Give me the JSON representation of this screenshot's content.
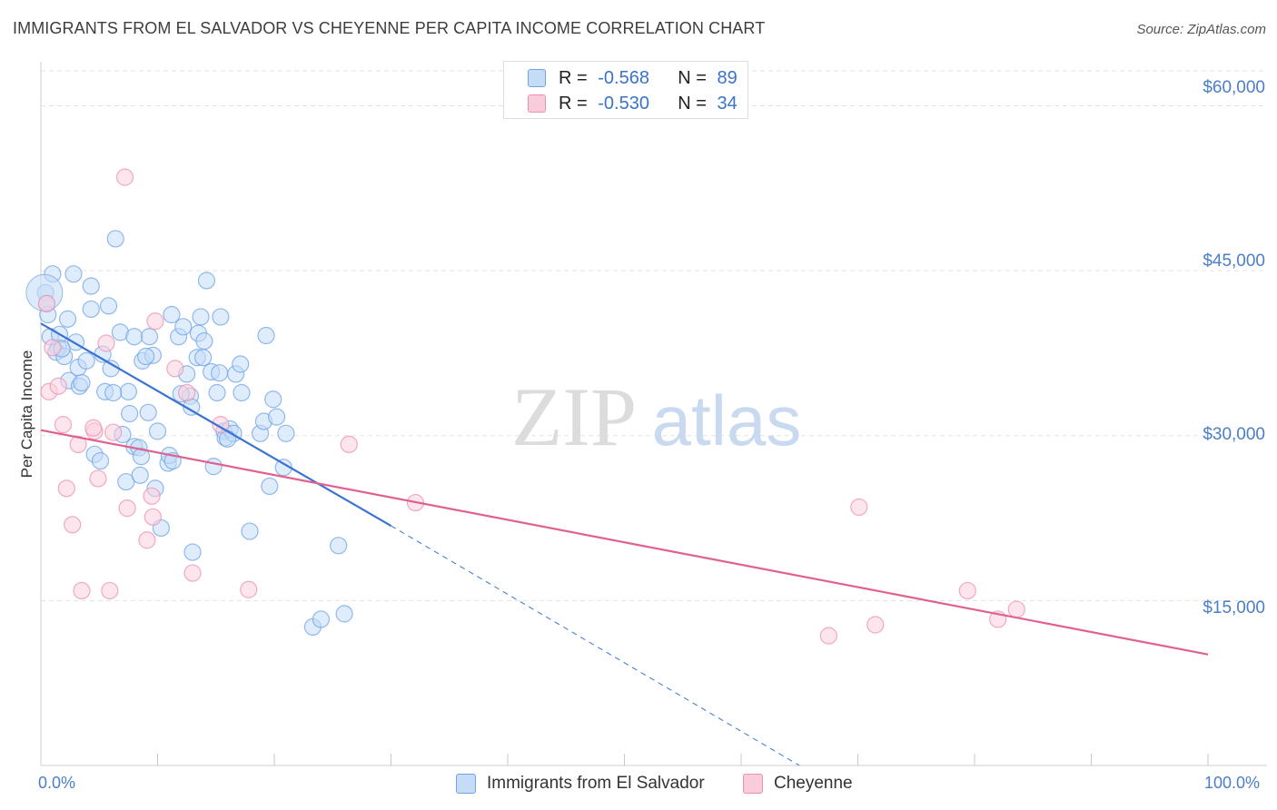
{
  "title": "IMMIGRANTS FROM EL SALVADOR VS CHEYENNE PER CAPITA INCOME CORRELATION CHART",
  "source": "Source: ZipAtlas.com",
  "watermark": {
    "zip": "ZIP",
    "atlas": "atlas"
  },
  "legend": {
    "r_label": "R = ",
    "n_label": "N = ",
    "rows": [
      {
        "r": "-0.568",
        "n": "89",
        "color": "#6fa3e6",
        "fill": "#c5dcf7"
      },
      {
        "r": "-0.530",
        "n": "34",
        "color": "#ee8fb0",
        "fill": "#f9ccdb"
      }
    ]
  },
  "colors": {
    "blue": "#3a73d1",
    "pink": "#e0608f",
    "blue_fill": "#c5dcf7",
    "pink_fill": "#f9d0de",
    "grid": "#e3e3e3",
    "axis_text": "#4a7ec9"
  },
  "chart_data": {
    "type": "scatter",
    "title": "IMMIGRANTS FROM EL SALVADOR VS CHEYENNE PER CAPITA INCOME CORRELATION CHART",
    "xlabel": "",
    "ylabel": "Per Capita Income",
    "xlim": [
      0,
      100
    ],
    "ylim": [
      0,
      64000
    ],
    "x_tick_labels": [
      "0.0%",
      "100.0%"
    ],
    "y_ticks": [
      15000,
      30000,
      45000,
      60000
    ],
    "y_tick_labels": [
      "$15,000",
      "$30,000",
      "$45,000",
      "$60,000"
    ],
    "series": [
      {
        "name": "Immigrants from El Salvador",
        "color": "#3a73d1",
        "points": [
          [
            0.4,
            43000
          ],
          [
            0.5,
            42000
          ],
          [
            0.6,
            41000
          ],
          [
            1.0,
            44700
          ],
          [
            0.8,
            39000
          ],
          [
            1.5,
            38000
          ],
          [
            1.3,
            37600
          ],
          [
            1.6,
            39200
          ],
          [
            2.3,
            40600
          ],
          [
            2.0,
            37200
          ],
          [
            2.4,
            35000
          ],
          [
            2.8,
            44700
          ],
          [
            3.0,
            38500
          ],
          [
            3.2,
            36200
          ],
          [
            3.3,
            34500
          ],
          [
            3.5,
            34800
          ],
          [
            4.3,
            43600
          ],
          [
            4.3,
            41500
          ],
          [
            4.6,
            28300
          ],
          [
            5.1,
            27700
          ],
          [
            5.3,
            37400
          ],
          [
            5.8,
            41800
          ],
          [
            6.0,
            36100
          ],
          [
            5.5,
            34000
          ],
          [
            6.4,
            47900
          ],
          [
            6.8,
            39400
          ],
          [
            7.0,
            30100
          ],
          [
            7.3,
            25800
          ],
          [
            7.5,
            34000
          ],
          [
            7.6,
            32000
          ],
          [
            8.0,
            29000
          ],
          [
            8.4,
            28900
          ],
          [
            8.5,
            26400
          ],
          [
            8.6,
            28100
          ],
          [
            8.0,
            39000
          ],
          [
            8.7,
            36800
          ],
          [
            9.2,
            32100
          ],
          [
            9.3,
            39000
          ],
          [
            9.6,
            37300
          ],
          [
            9.8,
            25200
          ],
          [
            10.3,
            21600
          ],
          [
            10.9,
            27500
          ],
          [
            11.2,
            41000
          ],
          [
            11.0,
            28200
          ],
          [
            11.3,
            27700
          ],
          [
            11.8,
            39000
          ],
          [
            12.2,
            39900
          ],
          [
            12.5,
            35600
          ],
          [
            12.8,
            33600
          ],
          [
            12.9,
            32600
          ],
          [
            13.0,
            19400
          ],
          [
            13.4,
            37100
          ],
          [
            13.5,
            39300
          ],
          [
            13.7,
            40800
          ],
          [
            13.9,
            37100
          ],
          [
            14.0,
            38600
          ],
          [
            14.2,
            44100
          ],
          [
            14.6,
            35800
          ],
          [
            14.8,
            27200
          ],
          [
            15.1,
            33900
          ],
          [
            15.3,
            35700
          ],
          [
            15.4,
            40800
          ],
          [
            15.7,
            30400
          ],
          [
            15.8,
            29800
          ],
          [
            16.2,
            30600
          ],
          [
            16.5,
            30200
          ],
          [
            16.7,
            35600
          ],
          [
            17.1,
            36500
          ],
          [
            17.2,
            33900
          ],
          [
            17.9,
            21300
          ],
          [
            18.8,
            30200
          ],
          [
            19.1,
            31300
          ],
          [
            19.3,
            39100
          ],
          [
            19.6,
            25400
          ],
          [
            19.9,
            33300
          ],
          [
            20.2,
            31700
          ],
          [
            20.8,
            27100
          ],
          [
            21.0,
            30200
          ],
          [
            23.3,
            12600
          ],
          [
            24.0,
            13300
          ],
          [
            25.5,
            20000
          ],
          [
            26.0,
            13800
          ],
          [
            1.8,
            37900
          ],
          [
            3.9,
            36800
          ],
          [
            6.2,
            33900
          ],
          [
            10.0,
            30400
          ],
          [
            12.0,
            33800
          ],
          [
            16.0,
            29700
          ],
          [
            9.0,
            37200
          ]
        ]
      },
      {
        "name": "Cheyenne",
        "color": "#e0608f",
        "points": [
          [
            0.5,
            42000
          ],
          [
            0.7,
            34000
          ],
          [
            1.0,
            38000
          ],
          [
            1.5,
            34500
          ],
          [
            1.9,
            31000
          ],
          [
            2.2,
            25200
          ],
          [
            2.7,
            21900
          ],
          [
            3.2,
            29200
          ],
          [
            3.5,
            15900
          ],
          [
            4.6,
            30400
          ],
          [
            4.9,
            26100
          ],
          [
            5.6,
            38400
          ],
          [
            5.9,
            15900
          ],
          [
            6.2,
            30300
          ],
          [
            7.2,
            53500
          ],
          [
            7.4,
            23400
          ],
          [
            9.1,
            20500
          ],
          [
            9.6,
            22600
          ],
          [
            9.8,
            40400
          ],
          [
            11.5,
            36100
          ],
          [
            12.5,
            33900
          ],
          [
            13.0,
            17500
          ],
          [
            15.4,
            31000
          ],
          [
            17.8,
            16000
          ],
          [
            26.4,
            29200
          ],
          [
            32.1,
            23900
          ],
          [
            67.5,
            11800
          ],
          [
            70.1,
            23500
          ],
          [
            71.5,
            12800
          ],
          [
            79.4,
            15900
          ],
          [
            82.0,
            13300
          ],
          [
            83.6,
            14200
          ],
          [
            4.5,
            30700
          ],
          [
            9.5,
            24500
          ]
        ]
      }
    ],
    "trend_lines": [
      {
        "series": "Immigrants from El Salvador",
        "solid": {
          "x": [
            0,
            30
          ],
          "y": [
            40200,
            21800
          ]
        },
        "dashed": {
          "x": [
            30,
            65
          ],
          "y": [
            21800,
            0
          ]
        }
      },
      {
        "series": "Cheyenne",
        "solid": {
          "x": [
            0,
            100
          ],
          "y": [
            30500,
            10100
          ]
        }
      }
    ],
    "legend": [
      "Immigrants from El Salvador",
      "Cheyenne"
    ]
  }
}
